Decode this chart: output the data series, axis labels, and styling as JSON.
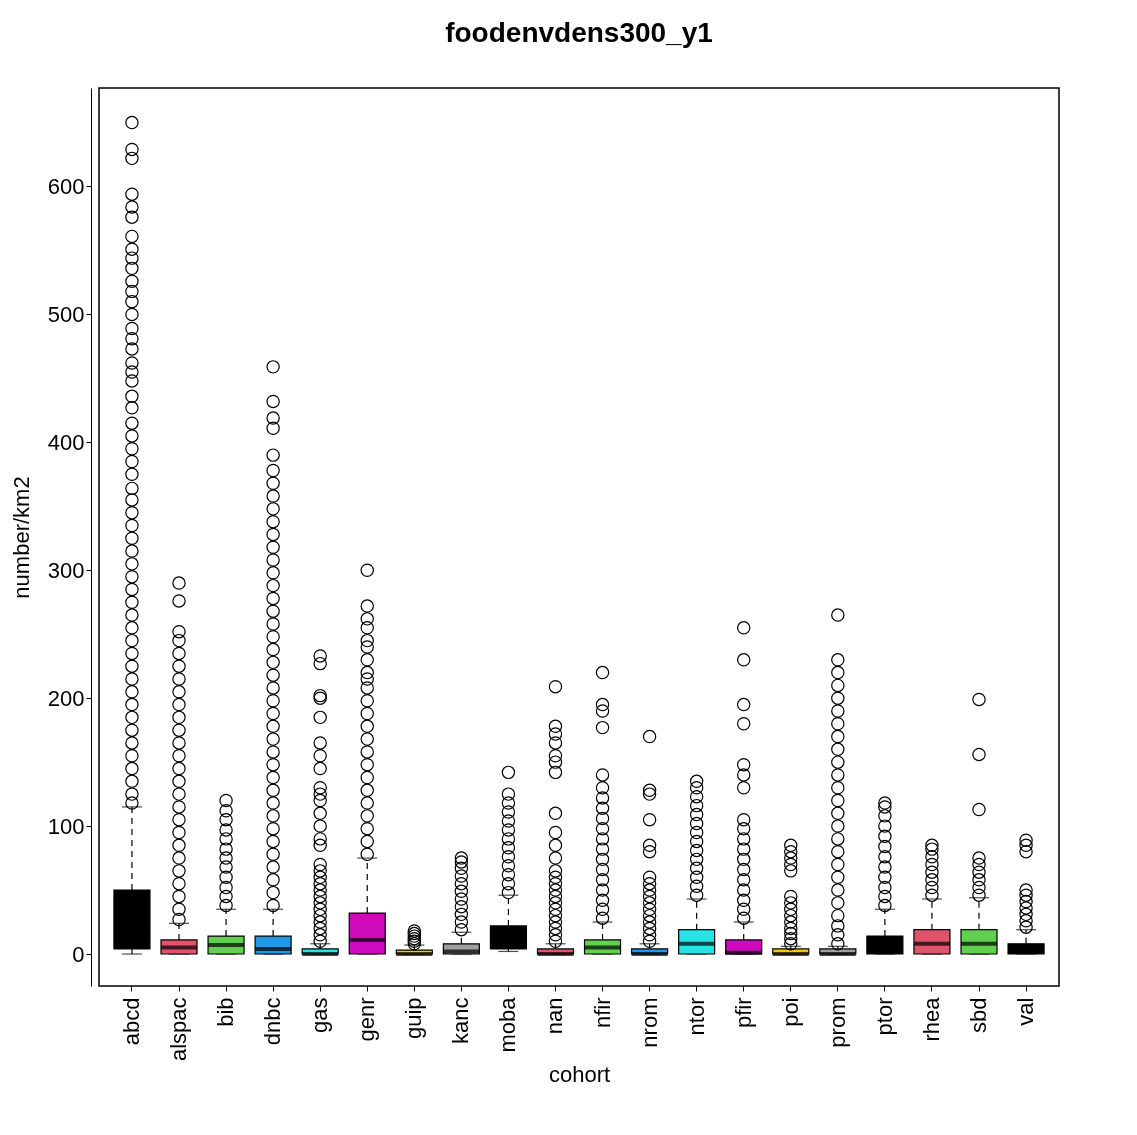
{
  "chart_data": {
    "type": "box",
    "title": "foodenvdens300_y1",
    "xlabel": "cohort",
    "ylabel": "number/km2",
    "categories": [
      "abcd",
      "alspac",
      "bib",
      "dnbc",
      "gas",
      "genr",
      "guip",
      "kanc",
      "moba",
      "nan",
      "nfir",
      "nrom",
      "ntor",
      "pfir",
      "poi",
      "prom",
      "ptor",
      "rhea",
      "sbd",
      "val"
    ],
    "colors": [
      "#000000",
      "#df536b",
      "#61d04f",
      "#2297e6",
      "#28e2e5",
      "#cd0bbc",
      "#f5c710",
      "#9e9e9e",
      "#000000",
      "#df536b",
      "#61d04f",
      "#2297e6",
      "#28e2e5",
      "#cd0bbc",
      "#f5c710",
      "#9e9e9e",
      "#000000",
      "#df536b",
      "#61d04f",
      "#000000"
    ],
    "boxes": [
      {
        "low": 0,
        "q1": 4,
        "median": 18,
        "q3": 50,
        "high": 115,
        "outliers": [
          118,
          125,
          135,
          145,
          155,
          165,
          175,
          185,
          195,
          205,
          215,
          225,
          235,
          245,
          255,
          265,
          275,
          285,
          295,
          305,
          315,
          325,
          335,
          345,
          355,
          364,
          375,
          385,
          395,
          405,
          415,
          427,
          436,
          448,
          455,
          462,
          473,
          481,
          489,
          500,
          510,
          518,
          526,
          536,
          544,
          551,
          561,
          576,
          584,
          594,
          622,
          629,
          650
        ]
      },
      {
        "low": 0,
        "q1": 0,
        "median": 5,
        "q3": 11,
        "high": 24,
        "outliers": [
          27,
          35,
          45,
          55,
          65,
          75,
          85,
          95,
          105,
          115,
          125,
          135,
          145,
          155,
          165,
          175,
          185,
          195,
          205,
          215,
          225,
          235,
          245,
          252,
          276,
          290
        ]
      },
      {
        "low": 0,
        "q1": 0,
        "median": 7,
        "q3": 14,
        "high": 35,
        "outliers": [
          38,
          45,
          52,
          60,
          68,
          75,
          82,
          90,
          97,
          105,
          112,
          120
        ]
      },
      {
        "low": 0,
        "q1": 0,
        "median": 4,
        "q3": 14,
        "high": 35,
        "outliers": [
          38,
          48,
          58,
          68,
          78,
          88,
          98,
          108,
          118,
          128,
          138,
          148,
          158,
          168,
          178,
          188,
          198,
          208,
          218,
          228,
          238,
          248,
          258,
          268,
          278,
          288,
          298,
          308,
          318,
          328,
          338,
          348,
          358,
          368,
          378,
          390,
          411,
          419,
          432,
          459
        ]
      },
      {
        "low": 0,
        "q1": 0,
        "median": 0,
        "q3": 4,
        "high": 8,
        "outliers": [
          10,
          15,
          20,
          25,
          30,
          35,
          40,
          45,
          50,
          55,
          60,
          65,
          70,
          85,
          90,
          100,
          110,
          120,
          125,
          130,
          145,
          155,
          165,
          185,
          200,
          202,
          227,
          233
        ]
      },
      {
        "low": 0,
        "q1": 0,
        "median": 11,
        "q3": 32,
        "high": 75,
        "outliers": [
          78,
          88,
          98,
          108,
          118,
          128,
          138,
          148,
          158,
          168,
          178,
          188,
          198,
          208,
          215,
          220,
          230,
          240,
          245,
          255,
          262,
          272,
          300
        ]
      },
      {
        "low": 0,
        "q1": 0,
        "median": 0,
        "q3": 3,
        "high": 7,
        "outliers": [
          8,
          10,
          12,
          14,
          16,
          18
        ]
      },
      {
        "low": 0,
        "q1": 0,
        "median": 2,
        "q3": 8,
        "high": 17,
        "outliers": [
          19,
          25,
          31,
          37,
          43,
          49,
          55,
          61,
          67,
          72,
          75
        ]
      },
      {
        "low": 2,
        "q1": 4,
        "median": 12,
        "q3": 22,
        "high": 46,
        "outliers": [
          48,
          55,
          62,
          69,
          76,
          83,
          90,
          97,
          104,
          111,
          118,
          125,
          142
        ]
      },
      {
        "low": 0,
        "q1": 0,
        "median": 0,
        "q3": 4,
        "high": 8,
        "outliers": [
          10,
          15,
          20,
          25,
          30,
          35,
          40,
          45,
          50,
          55,
          60,
          65,
          75,
          85,
          95,
          110,
          142,
          150,
          155,
          165,
          172,
          178,
          209
        ]
      },
      {
        "low": 0,
        "q1": 0,
        "median": 5,
        "q3": 11,
        "high": 25,
        "outliers": [
          28,
          35,
          42,
          50,
          58,
          66,
          74,
          82,
          90,
          98,
          106,
          114,
          122,
          130,
          140,
          177,
          190,
          195,
          220
        ]
      },
      {
        "low": 0,
        "q1": 0,
        "median": 0,
        "q3": 4,
        "high": 8,
        "outliers": [
          10,
          15,
          20,
          25,
          30,
          35,
          40,
          45,
          50,
          55,
          60,
          80,
          85,
          105,
          125,
          128,
          170
        ]
      },
      {
        "low": 0,
        "q1": 0,
        "median": 8,
        "q3": 19,
        "high": 43,
        "outliers": [
          46,
          53,
          60,
          67,
          74,
          81,
          88,
          95,
          102,
          109,
          116,
          123,
          130,
          135
        ]
      },
      {
        "low": 0,
        "q1": 0,
        "median": 1,
        "q3": 11,
        "high": 25,
        "outliers": [
          28,
          35,
          42,
          50,
          58,
          66,
          74,
          82,
          90,
          98,
          105,
          130,
          140,
          148,
          180,
          195,
          230,
          255
        ]
      },
      {
        "low": 0,
        "q1": 0,
        "median": 0,
        "q3": 4,
        "high": 6,
        "outliers": [
          8,
          12,
          16,
          20,
          25,
          30,
          35,
          40,
          45,
          65,
          70,
          75,
          80,
          85
        ]
      },
      {
        "low": 0,
        "q1": 0,
        "median": 0,
        "q3": 4,
        "high": 6,
        "outliers": [
          8,
          15,
          22,
          30,
          40,
          50,
          60,
          70,
          80,
          90,
          100,
          110,
          120,
          130,
          140,
          150,
          160,
          170,
          180,
          190,
          200,
          210,
          220,
          230,
          265
        ]
      },
      {
        "low": 0,
        "q1": 0,
        "median": 5,
        "q3": 14,
        "high": 35,
        "outliers": [
          38,
          45,
          52,
          60,
          68,
          76,
          84,
          92,
          100,
          108,
          115,
          118
        ]
      },
      {
        "low": 0,
        "q1": 0,
        "median": 8,
        "q3": 19,
        "high": 43,
        "outliers": [
          46,
          52,
          58,
          64,
          70,
          76,
          82,
          85
        ]
      },
      {
        "low": 0,
        "q1": 0,
        "median": 8,
        "q3": 19,
        "high": 44,
        "outliers": [
          46,
          52,
          58,
          64,
          70,
          75,
          113,
          156,
          199
        ]
      },
      {
        "low": 0,
        "q1": 0,
        "median": 2,
        "q3": 8,
        "high": 19,
        "outliers": [
          21,
          26,
          31,
          36,
          41,
          46,
          50,
          80,
          85,
          89
        ]
      }
    ],
    "ylim": [
      -25,
      677
    ],
    "yticks": [
      0,
      100,
      200,
      300,
      400,
      500,
      600
    ],
    "marker": "circle"
  }
}
